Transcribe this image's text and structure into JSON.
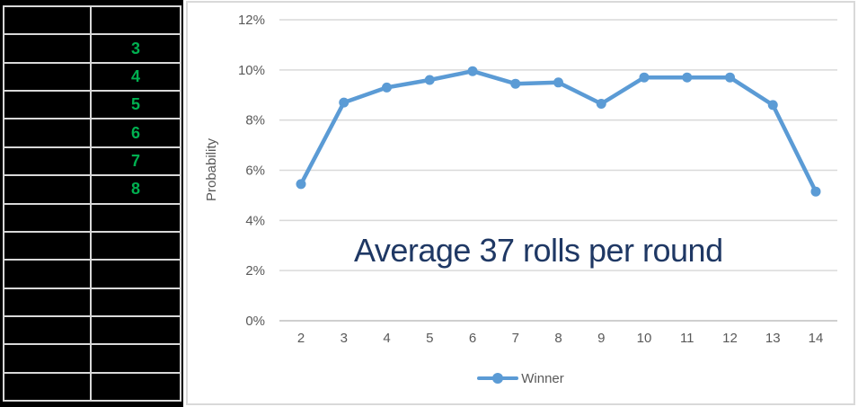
{
  "table": {
    "border_color": "#D8D8D8",
    "value_color": "#00B050",
    "rows": [
      [
        "",
        ""
      ],
      [
        "",
        "3"
      ],
      [
        "",
        "4"
      ],
      [
        "",
        "5"
      ],
      [
        "",
        "6"
      ],
      [
        "",
        "7"
      ],
      [
        "",
        "8"
      ],
      [
        "",
        ""
      ],
      [
        "",
        ""
      ],
      [
        "",
        ""
      ],
      [
        "",
        ""
      ],
      [
        "",
        ""
      ],
      [
        "",
        ""
      ],
      [
        "",
        ""
      ]
    ]
  },
  "chart_data": {
    "type": "line",
    "x": [
      2,
      3,
      4,
      5,
      6,
      7,
      8,
      9,
      10,
      11,
      12,
      13,
      14
    ],
    "series": [
      {
        "name": "Winner",
        "color": "#5B9BD5",
        "values": [
          5.45,
          8.7,
          9.3,
          9.6,
          9.95,
          9.45,
          9.5,
          8.65,
          9.7,
          9.7,
          9.7,
          8.6,
          5.15
        ]
      }
    ],
    "title": "",
    "xlabel": "",
    "ylabel": "Probability",
    "ylim": [
      0,
      12
    ],
    "ytick_step": 2,
    "ytick_labels": [
      "0%",
      "2%",
      "4%",
      "6%",
      "8%",
      "10%",
      "12%"
    ],
    "grid": true,
    "legend_position": "bottom",
    "annotation": "Average 37 rolls per round",
    "annotation_color": "#1F3864",
    "axis_text_color": "#595959",
    "gridline_color": "#D9D9D9",
    "axis_line_color": "#BFBFBF"
  }
}
